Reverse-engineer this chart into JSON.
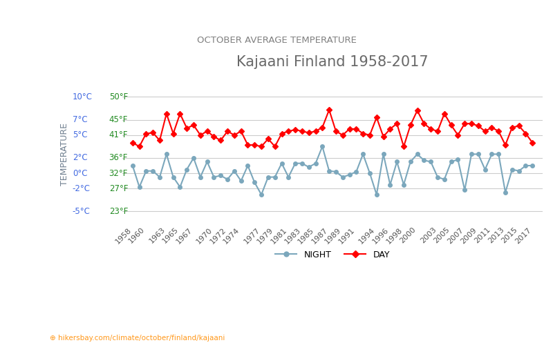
{
  "title": "Kajaani Finland 1958-2017",
  "subtitle": "OCTOBER AVERAGE TEMPERATURE",
  "xlabel": "",
  "ylabel": "TEMPERATURE",
  "ylabel_color": "#708090",
  "title_color": "#696969",
  "subtitle_color": "#808080",
  "background_color": "#ffffff",
  "grid_color": "#cccccc",
  "watermark": "hikersbay.com/climate/october/finland/kajaani",
  "ylim": [
    -6.5,
    11.5
  ],
  "yticks_celsius": [
    -5,
    -2,
    0,
    2,
    5,
    7,
    10
  ],
  "yticks_fahrenheit": [
    23,
    27,
    32,
    36,
    41,
    45,
    50
  ],
  "ytick_color_celsius": "#4169e1",
  "ytick_color_fahrenheit": "#228b22",
  "years": [
    1958,
    1959,
    1960,
    1961,
    1962,
    1963,
    1964,
    1965,
    1966,
    1967,
    1968,
    1969,
    1970,
    1971,
    1972,
    1973,
    1974,
    1975,
    1976,
    1977,
    1978,
    1979,
    1980,
    1981,
    1982,
    1983,
    1984,
    1985,
    1986,
    1987,
    1988,
    1989,
    1990,
    1991,
    1992,
    1993,
    1994,
    1995,
    1996,
    1997,
    1998,
    1999,
    2000,
    2001,
    2002,
    2003,
    2004,
    2005,
    2006,
    2007,
    2008,
    2009,
    2010,
    2011,
    2012,
    2013,
    2014,
    2015,
    2016,
    2017
  ],
  "day_temps": [
    4.0,
    3.5,
    5.2,
    5.3,
    4.3,
    7.8,
    5.2,
    7.8,
    5.9,
    6.3,
    5.0,
    5.5,
    4.8,
    4.3,
    5.5,
    5.0,
    5.5,
    3.7,
    3.7,
    3.5,
    4.5,
    3.5,
    5.2,
    5.5,
    5.7,
    5.5,
    5.3,
    5.5,
    6.0,
    8.3,
    5.5,
    5.0,
    5.8,
    5.8,
    5.2,
    5.0,
    7.3,
    4.8,
    5.8,
    6.5,
    3.5,
    6.3,
    8.2,
    6.5,
    5.8,
    5.5,
    7.8,
    6.3,
    5.0,
    6.5,
    6.5,
    6.2,
    5.5,
    6.0,
    5.5,
    3.7,
    6.0,
    6.2,
    5.2,
    4.0
  ],
  "night_temps": [
    1.0,
    -1.8,
    0.3,
    0.3,
    -0.5,
    2.5,
    -0.5,
    -1.8,
    0.5,
    2.0,
    -0.5,
    1.5,
    -0.5,
    -0.3,
    -0.8,
    0.3,
    -1.0,
    1.0,
    -1.2,
    -2.8,
    -0.5,
    -0.5,
    1.3,
    -0.5,
    1.3,
    1.3,
    0.8,
    1.3,
    3.5,
    0.3,
    0.2,
    -0.5,
    -0.2,
    0.2,
    2.5,
    0.0,
    -2.8,
    2.5,
    -1.5,
    1.5,
    -1.5,
    1.5,
    2.5,
    1.7,
    1.5,
    -0.5,
    -0.8,
    1.5,
    1.8,
    -2.2,
    2.5,
    2.5,
    0.5,
    2.5,
    2.5,
    -2.5,
    0.5,
    0.3,
    1.0,
    1.0
  ],
  "day_color": "#ff0000",
  "night_color": "#7ba7bc",
  "day_marker": "D",
  "night_marker": "o",
  "marker_size": 4,
  "line_width": 1.5,
  "legend_night_label": "NIGHT",
  "legend_day_label": "DAY",
  "xtick_years": [
    1958,
    1960,
    1963,
    1965,
    1967,
    1970,
    1972,
    1974,
    1977,
    1979,
    1981,
    1983,
    1985,
    1987,
    1989,
    1991,
    1994,
    1996,
    1998,
    2000,
    2003,
    2005,
    2007,
    2009,
    2011,
    2013,
    2015,
    2017
  ],
  "figsize": [
    8.0,
    5.0
  ],
  "dpi": 100
}
